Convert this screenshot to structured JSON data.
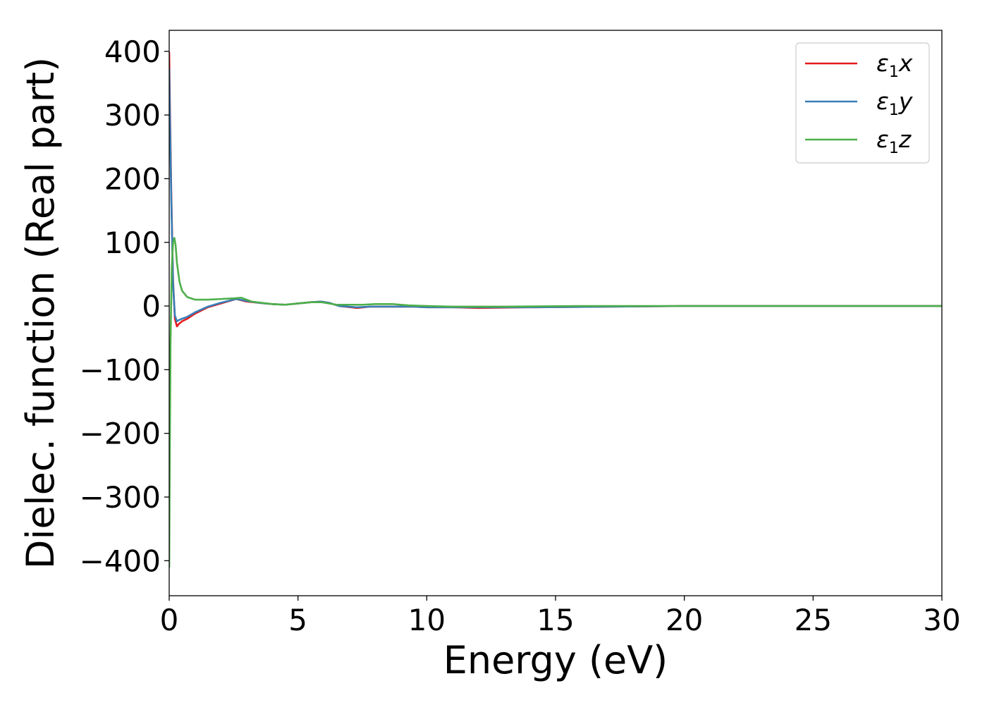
{
  "chart_data": {
    "type": "line",
    "xlabel": "Energy (eV)",
    "ylabel": "Dielec. function (Real part)",
    "xlim": [
      0,
      30
    ],
    "ylim": [
      -455,
      433
    ],
    "xticks": [
      0,
      5,
      10,
      15,
      20,
      25,
      30
    ],
    "xtick_labels": [
      "0",
      "5",
      "10",
      "15",
      "20",
      "25",
      "30"
    ],
    "yticks": [
      -400,
      -300,
      -200,
      -100,
      0,
      100,
      200,
      300,
      400
    ],
    "ytick_labels": [
      "−400",
      "−300",
      "−200",
      "−100",
      "0",
      "100",
      "200",
      "300",
      "400"
    ],
    "grid": false,
    "legend_position": "top-right",
    "series": [
      {
        "name": "ε1x",
        "legend_base": "ε",
        "legend_sub": "1",
        "legend_var": "x",
        "color": "#e41a1c",
        "x": [
          0,
          0.03,
          0.08,
          0.15,
          0.22,
          0.3,
          0.38,
          0.5,
          0.7,
          1.0,
          1.5,
          2.0,
          2.6,
          3.0,
          3.5,
          4.0,
          4.5,
          5.0,
          5.5,
          5.9,
          6.2,
          6.6,
          7.3,
          7.8,
          8.5,
          9.0,
          9.5,
          10.0,
          11.0,
          12.0,
          14.0,
          17.0,
          20.0,
          25.0,
          30.0
        ],
        "y": [
          398,
          310,
          180,
          40,
          -20,
          -32,
          -28,
          -24,
          -20,
          -12,
          -2,
          4,
          11,
          7,
          5,
          3,
          2,
          4,
          6,
          7,
          5,
          0,
          -3,
          -1,
          -1,
          -1,
          -1,
          -2,
          -2,
          -3,
          -2,
          -1,
          0,
          0,
          0
        ]
      },
      {
        "name": "ε1y",
        "legend_base": "ε",
        "legend_sub": "1",
        "legend_var": "y",
        "color": "#377eb8",
        "x": [
          0,
          0.03,
          0.08,
          0.15,
          0.22,
          0.3,
          0.38,
          0.5,
          0.7,
          1.0,
          1.5,
          2.0,
          2.6,
          3.0,
          3.5,
          4.0,
          4.5,
          5.0,
          5.5,
          5.9,
          6.2,
          6.6,
          7.3,
          7.8,
          8.5,
          9.0,
          9.5,
          10.0,
          11.0,
          12.0,
          14.0,
          17.0,
          20.0,
          25.0,
          30.0
        ],
        "y": [
          372,
          290,
          170,
          35,
          -15,
          -24,
          -22,
          -20,
          -17,
          -10,
          -1,
          5,
          11,
          8,
          5,
          3,
          2,
          4,
          6,
          7,
          5,
          0,
          -2,
          -1,
          -1,
          -1,
          -1,
          -2,
          -2,
          -2,
          -2,
          -1,
          0,
          0,
          0
        ]
      },
      {
        "name": "ε1z",
        "legend_base": "ε",
        "legend_sub": "1",
        "legend_var": "z",
        "color": "#4daf4a",
        "x": [
          0,
          0.02,
          0.05,
          0.1,
          0.15,
          0.2,
          0.25,
          0.3,
          0.4,
          0.5,
          0.7,
          1.0,
          1.5,
          2.0,
          2.5,
          2.8,
          3.2,
          4.0,
          4.5,
          5.0,
          5.5,
          5.9,
          6.5,
          7.5,
          8.0,
          8.7,
          9.3,
          10.0,
          11.0,
          13.0,
          16.0,
          20.0,
          25.0,
          30.0
        ],
        "y": [
          -410,
          -250,
          -60,
          60,
          100,
          107,
          95,
          68,
          38,
          24,
          14,
          10,
          10,
          11,
          12,
          13,
          7,
          3,
          2,
          4,
          6,
          6,
          2,
          2,
          3,
          3,
          1,
          0,
          -1,
          -1,
          0,
          0,
          0,
          0
        ]
      }
    ]
  }
}
